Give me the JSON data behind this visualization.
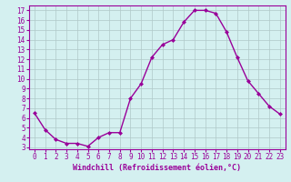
{
  "x": [
    0,
    1,
    2,
    3,
    4,
    5,
    6,
    7,
    8,
    9,
    10,
    11,
    12,
    13,
    14,
    15,
    16,
    17,
    18,
    19,
    20,
    21,
    22,
    23
  ],
  "y": [
    6.5,
    4.8,
    3.8,
    3.4,
    3.4,
    3.1,
    4.0,
    4.5,
    4.5,
    8.0,
    9.5,
    12.2,
    13.5,
    14.0,
    15.8,
    17.0,
    17.0,
    16.7,
    14.8,
    12.2,
    9.8,
    8.5,
    7.2,
    6.4
  ],
  "line_color": "#990099",
  "marker": "D",
  "marker_size": 2,
  "linewidth": 1.0,
  "xlabel": "Windchill (Refroidissement éolien,°C)",
  "xlabel_fontsize": 6,
  "ylabel_ticks": [
    3,
    4,
    5,
    6,
    7,
    8,
    9,
    10,
    11,
    12,
    13,
    14,
    15,
    16,
    17
  ],
  "xlim": [
    -0.5,
    23.5
  ],
  "ylim": [
    2.8,
    17.5
  ],
  "bg_color": "#d4f0f0",
  "grid_color": "#b0c8c8",
  "tick_fontsize": 5.5,
  "spine_color": "#990099"
}
